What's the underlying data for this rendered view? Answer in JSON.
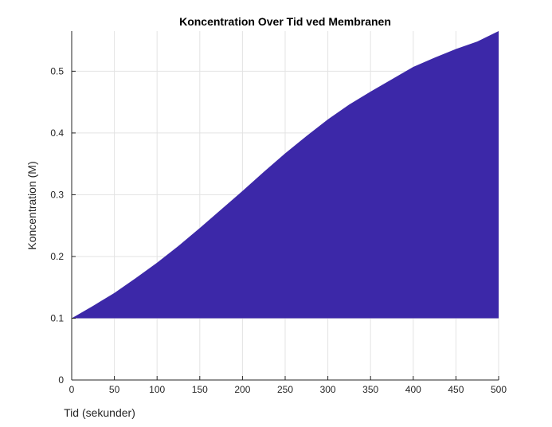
{
  "chart_data": {
    "type": "area",
    "title": "Koncentration Over Tid ved Membranen",
    "xlabel": "Tid (sekunder)",
    "ylabel": "Koncentration (M)",
    "xlim": [
      0,
      500
    ],
    "ylim": [
      0,
      0.565
    ],
    "xticks": [
      0,
      50,
      100,
      150,
      200,
      250,
      300,
      350,
      400,
      450,
      500
    ],
    "yticks": [
      0,
      0.1,
      0.2,
      0.3,
      0.4,
      0.5
    ],
    "grid": true,
    "baseline": 0.1,
    "fill_color": "#3c28a8",
    "series": [
      {
        "x": [
          0,
          25,
          50,
          75,
          100,
          125,
          150,
          175,
          200,
          225,
          250,
          275,
          300,
          325,
          350,
          375,
          400,
          425,
          450,
          475,
          500
        ],
        "values": [
          0.1,
          0.12,
          0.141,
          0.165,
          0.19,
          0.217,
          0.246,
          0.276,
          0.306,
          0.337,
          0.367,
          0.395,
          0.422,
          0.446,
          0.467,
          0.487,
          0.507,
          0.522,
          0.536,
          0.548,
          0.565
        ]
      }
    ]
  }
}
